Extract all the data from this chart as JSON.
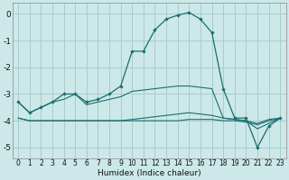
{
  "xlabel": "Humidex (Indice chaleur)",
  "bg_color": "#cce8e8",
  "grid_color": "#aacccc",
  "line_color": "#1a6e6e",
  "xlim": [
    -0.5,
    23.5
  ],
  "ylim": [
    -5.4,
    0.4
  ],
  "yticks": [
    0,
    -1,
    -2,
    -3,
    -4,
    -5
  ],
  "xticks": [
    0,
    1,
    2,
    3,
    4,
    5,
    6,
    7,
    8,
    9,
    10,
    11,
    12,
    13,
    14,
    15,
    16,
    17,
    18,
    19,
    20,
    21,
    22,
    23
  ],
  "line1_x": [
    0,
    1,
    2,
    3,
    4,
    5,
    6,
    7,
    8,
    9,
    10,
    11,
    12,
    13,
    14,
    15,
    16,
    17,
    18,
    19,
    20,
    21,
    22,
    23
  ],
  "line1_y": [
    -3.3,
    -3.7,
    -3.5,
    -3.3,
    -3.0,
    -3.0,
    -3.3,
    -3.2,
    -3.0,
    -2.7,
    -1.4,
    -1.4,
    -0.6,
    -0.2,
    -0.05,
    0.05,
    -0.2,
    -0.7,
    -2.8,
    -3.9,
    -3.9,
    -5.0,
    -4.2,
    -3.9
  ],
  "line2_x": [
    0,
    1,
    2,
    3,
    4,
    5,
    6,
    7,
    8,
    9,
    10,
    11,
    12,
    13,
    14,
    15,
    16,
    17,
    18,
    19,
    20,
    21,
    22,
    23
  ],
  "line2_y": [
    -3.3,
    -3.7,
    -3.5,
    -3.3,
    -3.2,
    -3.0,
    -3.4,
    -3.3,
    -3.2,
    -3.1,
    -2.9,
    -2.85,
    -2.8,
    -2.75,
    -2.7,
    -2.7,
    -2.75,
    -2.8,
    -3.9,
    -3.95,
    -4.0,
    -4.3,
    -4.1,
    -3.9
  ],
  "line3_x": [
    0,
    1,
    2,
    3,
    4,
    5,
    6,
    7,
    8,
    9,
    10,
    11,
    12,
    13,
    14,
    15,
    16,
    17,
    18,
    19,
    20,
    21,
    22,
    23
  ],
  "line3_y": [
    -3.9,
    -4.0,
    -4.0,
    -4.0,
    -4.0,
    -4.0,
    -4.0,
    -4.0,
    -4.0,
    -4.0,
    -3.95,
    -3.9,
    -3.85,
    -3.8,
    -3.75,
    -3.7,
    -3.75,
    -3.8,
    -3.9,
    -3.95,
    -4.0,
    -4.1,
    -3.95,
    -3.9
  ],
  "line4_x": [
    0,
    1,
    2,
    3,
    4,
    5,
    6,
    7,
    8,
    9,
    10,
    11,
    12,
    13,
    14,
    15,
    16,
    17,
    18,
    19,
    20,
    21,
    22,
    23
  ],
  "line4_y": [
    -3.9,
    -4.0,
    -4.0,
    -4.0,
    -4.0,
    -4.0,
    -4.0,
    -4.0,
    -4.0,
    -4.0,
    -4.0,
    -4.0,
    -4.0,
    -4.0,
    -4.0,
    -3.95,
    -3.95,
    -3.95,
    -4.0,
    -4.0,
    -4.05,
    -4.15,
    -4.0,
    -3.9
  ]
}
